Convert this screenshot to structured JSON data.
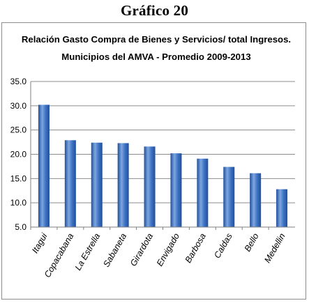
{
  "page": {
    "heading": "Gráfico 20"
  },
  "chart_data": {
    "type": "bar",
    "title": "Relación Gasto Compra de Bienes y Servicios/ total Ingresos.",
    "subtitle": "Municipios del AMVA - Promedio 2009-2013",
    "categories": [
      "Itagui",
      "Copacabana",
      "La Estrella",
      "Sabaneta",
      "Girardota",
      "Envigado",
      "Barbosa",
      "Caldas",
      "Bello",
      "Medellin"
    ],
    "values": [
      30.2,
      22.9,
      22.4,
      22.3,
      21.6,
      20.2,
      19.1,
      17.4,
      16.1,
      12.8
    ],
    "ylim": [
      5.0,
      35.0
    ],
    "yticks": [
      "5.0",
      "10.0",
      "15.0",
      "20.0",
      "25.0",
      "30.0",
      "35.0"
    ],
    "grid": true,
    "legend": "none",
    "colors": {
      "bar_light": "#7ea7e0",
      "bar_mid": "#3f73c4",
      "bar_dark": "#1f4f9c",
      "gridline": "#8c8c8c",
      "axis": "#7f7f7f"
    }
  }
}
